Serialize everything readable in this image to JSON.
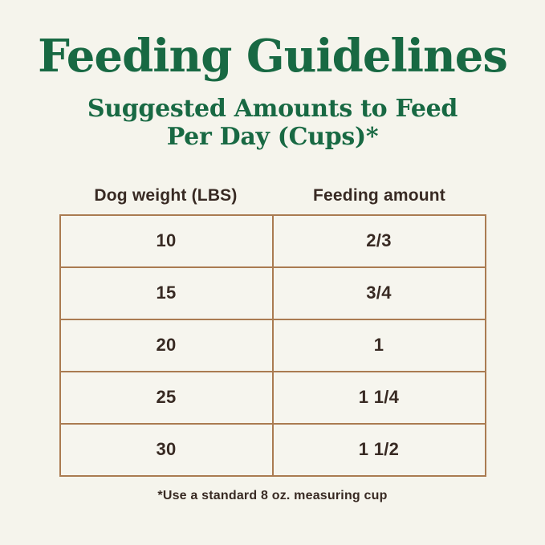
{
  "title": "Feeding Guidelines",
  "subtitle": {
    "line1": "Suggested Amounts to Feed",
    "line2": "Per Day (Cups)*"
  },
  "table": {
    "columns": [
      "Dog weight (LBS)",
      "Feeding amount"
    ],
    "rows": [
      [
        "10",
        "2/3"
      ],
      [
        "15",
        "3/4"
      ],
      [
        "20",
        "1"
      ],
      [
        "25",
        "1 1/4"
      ],
      [
        "30",
        "1 1/2"
      ]
    ]
  },
  "footnote": "*Use a standard 8 oz. measuring cup",
  "colors": {
    "background": "#f5f4ec",
    "heading_green": "#186943",
    "table_border_tan": "#aa7b51",
    "table_text_dark": "#382a23"
  },
  "chart_data": {
    "type": "table",
    "title": "Feeding Guidelines",
    "subtitle": "Suggested Amounts to Feed Per Day (Cups)*",
    "columns": [
      "Dog weight (LBS)",
      "Feeding amount"
    ],
    "categories": [
      10,
      15,
      20,
      25,
      30
    ],
    "values_cups": [
      0.667,
      0.75,
      1,
      1.25,
      1.5
    ],
    "values_labels": [
      "2/3",
      "3/4",
      "1",
      "1 1/4",
      "1 1/2"
    ],
    "xlabel": "Dog weight (LBS)",
    "ylabel": "Feeding amount (cups per day)",
    "footnote": "*Use a standard 8 oz. measuring cup"
  }
}
